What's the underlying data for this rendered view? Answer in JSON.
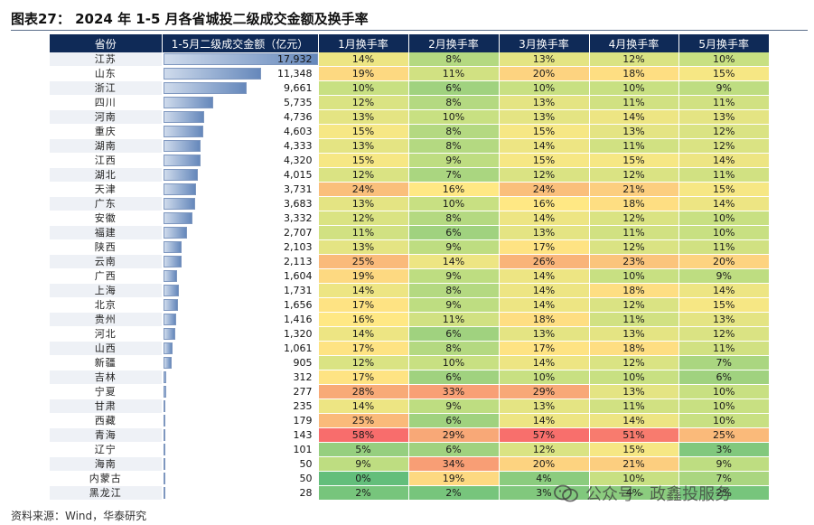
{
  "title": "图表27：  2024 年 1-5 月各省城投二级成交金额及换手率",
  "headers": [
    "省份",
    "1-5月二级成交金额（亿元）",
    "1月换手率",
    "2月换手率",
    "3月换手率",
    "4月换手率",
    "5月换手率"
  ],
  "amount_max": 17932,
  "rows": [
    {
      "province": "江苏",
      "amount": "17,932",
      "amount_value": 17932,
      "rates": [
        "14%",
        "8%",
        "13%",
        "12%",
        "10%"
      ]
    },
    {
      "province": "山东",
      "amount": "11,348",
      "amount_value": 11348,
      "rates": [
        "19%",
        "11%",
        "20%",
        "18%",
        "15%"
      ]
    },
    {
      "province": "浙江",
      "amount": "9,661",
      "amount_value": 9661,
      "rates": [
        "10%",
        "6%",
        "10%",
        "10%",
        "9%"
      ]
    },
    {
      "province": "四川",
      "amount": "5,735",
      "amount_value": 5735,
      "rates": [
        "12%",
        "8%",
        "13%",
        "11%",
        "11%"
      ]
    },
    {
      "province": "河南",
      "amount": "4,736",
      "amount_value": 4736,
      "rates": [
        "13%",
        "10%",
        "13%",
        "14%",
        "13%"
      ]
    },
    {
      "province": "重庆",
      "amount": "4,603",
      "amount_value": 4603,
      "rates": [
        "15%",
        "8%",
        "15%",
        "13%",
        "12%"
      ]
    },
    {
      "province": "湖南",
      "amount": "4,333",
      "amount_value": 4333,
      "rates": [
        "13%",
        "8%",
        "14%",
        "11%",
        "12%"
      ]
    },
    {
      "province": "江西",
      "amount": "4,320",
      "amount_value": 4320,
      "rates": [
        "15%",
        "9%",
        "15%",
        "15%",
        "14%"
      ]
    },
    {
      "province": "湖北",
      "amount": "4,015",
      "amount_value": 4015,
      "rates": [
        "12%",
        "7%",
        "12%",
        "12%",
        "11%"
      ]
    },
    {
      "province": "天津",
      "amount": "3,731",
      "amount_value": 3731,
      "rates": [
        "24%",
        "16%",
        "24%",
        "21%",
        "15%"
      ]
    },
    {
      "province": "广东",
      "amount": "3,683",
      "amount_value": 3683,
      "rates": [
        "13%",
        "10%",
        "16%",
        "18%",
        "14%"
      ]
    },
    {
      "province": "安徽",
      "amount": "3,332",
      "amount_value": 3332,
      "rates": [
        "12%",
        "8%",
        "14%",
        "12%",
        "10%"
      ]
    },
    {
      "province": "福建",
      "amount": "2,707",
      "amount_value": 2707,
      "rates": [
        "11%",
        "6%",
        "13%",
        "11%",
        "10%"
      ]
    },
    {
      "province": "陕西",
      "amount": "2,103",
      "amount_value": 2103,
      "rates": [
        "13%",
        "9%",
        "17%",
        "12%",
        "11%"
      ]
    },
    {
      "province": "云南",
      "amount": "2,113",
      "amount_value": 2113,
      "rates": [
        "25%",
        "14%",
        "26%",
        "23%",
        "20%"
      ]
    },
    {
      "province": "广西",
      "amount": "1,604",
      "amount_value": 1604,
      "rates": [
        "19%",
        "9%",
        "14%",
        "10%",
        "9%"
      ]
    },
    {
      "province": "上海",
      "amount": "1,731",
      "amount_value": 1731,
      "rates": [
        "14%",
        "8%",
        "14%",
        "18%",
        "14%"
      ]
    },
    {
      "province": "北京",
      "amount": "1,656",
      "amount_value": 1656,
      "rates": [
        "17%",
        "9%",
        "14%",
        "12%",
        "15%"
      ]
    },
    {
      "province": "贵州",
      "amount": "1,416",
      "amount_value": 1416,
      "rates": [
        "16%",
        "11%",
        "18%",
        "11%",
        "13%"
      ]
    },
    {
      "province": "河北",
      "amount": "1,320",
      "amount_value": 1320,
      "rates": [
        "14%",
        "6%",
        "13%",
        "13%",
        "12%"
      ]
    },
    {
      "province": "山西",
      "amount": "1,061",
      "amount_value": 1061,
      "rates": [
        "17%",
        "8%",
        "17%",
        "18%",
        "11%"
      ]
    },
    {
      "province": "新疆",
      "amount": "905",
      "amount_value": 905,
      "rates": [
        "12%",
        "10%",
        "14%",
        "12%",
        "7%"
      ]
    },
    {
      "province": "吉林",
      "amount": "312",
      "amount_value": 312,
      "rates": [
        "17%",
        "6%",
        "10%",
        "10%",
        "6%"
      ]
    },
    {
      "province": "宁夏",
      "amount": "277",
      "amount_value": 277,
      "rates": [
        "28%",
        "33%",
        "29%",
        "13%",
        "10%"
      ]
    },
    {
      "province": "甘肃",
      "amount": "235",
      "amount_value": 235,
      "rates": [
        "14%",
        "9%",
        "13%",
        "11%",
        "10%"
      ]
    },
    {
      "province": "西藏",
      "amount": "179",
      "amount_value": 179,
      "rates": [
        "25%",
        "6%",
        "14%",
        "14%",
        "10%"
      ]
    },
    {
      "province": "青海",
      "amount": "143",
      "amount_value": 143,
      "rates": [
        "58%",
        "29%",
        "57%",
        "51%",
        "25%"
      ]
    },
    {
      "province": "辽宁",
      "amount": "101",
      "amount_value": 101,
      "rates": [
        "5%",
        "6%",
        "12%",
        "15%",
        "3%"
      ]
    },
    {
      "province": "海南",
      "amount": "50",
      "amount_value": 50,
      "rates": [
        "9%",
        "34%",
        "20%",
        "21%",
        "9%"
      ]
    },
    {
      "province": "内蒙古",
      "amount": "50",
      "amount_value": 50,
      "rates": [
        "0%",
        "19%",
        "4%",
        "10%",
        "7%"
      ]
    },
    {
      "province": "黑龙江",
      "amount": "28",
      "amount_value": 28,
      "rates": [
        "2%",
        "2%",
        "3%",
        "4%",
        "2%"
      ]
    }
  ],
  "source": "资料来源：Wind，华泰研究",
  "watermark": "公众号 · 政鑫投服务"
}
